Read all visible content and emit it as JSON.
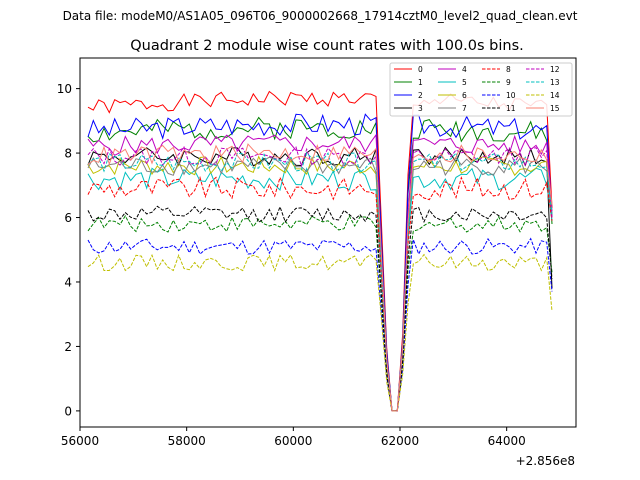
{
  "chart_data": {
    "type": "line",
    "suptitle": "Data file: modeM0/AS1A05_096T06_9000002668_17914cztM0_level2_quad_clean.evt",
    "title": "Quadrant 2 module wise count rates with 100.0s bins.",
    "xlabel": "",
    "ylabel": "",
    "offset_label": "+2.856e8",
    "xlim": [
      56000,
      65300
    ],
    "ylim": [
      -0.5,
      10.95
    ],
    "xticks": [
      56000,
      58000,
      60000,
      62000,
      64000
    ],
    "xtick_labels": [
      "56000",
      "58000",
      "60000",
      "62000",
      "64000"
    ],
    "yticks": [
      0,
      2,
      4,
      6,
      8,
      10
    ],
    "ytick_labels": [
      "0",
      "2",
      "4",
      "6",
      "8",
      "10"
    ],
    "x_start": 56150,
    "x_step": 100,
    "n_points": 88,
    "gap": {
      "drop_start": 61550,
      "zero_from": 61800,
      "zero_to": 62000,
      "recover": 62200
    },
    "grid": false,
    "legend_position": "upper-right",
    "legend_columns": 4,
    "series": [
      {
        "name": "0",
        "color": "#ff0000",
        "dash": "solid",
        "level": 9.4,
        "amp": 0.25,
        "seed": 1,
        "trend": 0.3,
        "dip_end": 6.3
      },
      {
        "name": "1",
        "color": "#008000",
        "dash": "solid",
        "level": 8.6,
        "amp": 0.35,
        "seed": 2,
        "trend": 0.2,
        "dip_end": 5.8
      },
      {
        "name": "2",
        "color": "#0000ff",
        "dash": "solid",
        "level": 8.7,
        "amp": 0.35,
        "seed": 3,
        "trend": 0.2,
        "dip_end": 6.0
      },
      {
        "name": "3",
        "color": "#000000",
        "dash": "solid",
        "level": 7.9,
        "amp": 0.3,
        "seed": 4,
        "trend": 0.0,
        "dip_end": 3.8
      },
      {
        "name": "4",
        "color": "#bf00bf",
        "dash": "solid",
        "level": 8.2,
        "amp": 0.3,
        "seed": 5,
        "trend": 0.1,
        "dip_end": 6.2
      },
      {
        "name": "5",
        "color": "#00bfbf",
        "dash": "solid",
        "level": 7.2,
        "amp": 0.35,
        "seed": 6,
        "trend": 0.0,
        "dip_end": 5.9
      },
      {
        "name": "6",
        "color": "#bfbf00",
        "dash": "solid",
        "level": 7.6,
        "amp": 0.3,
        "seed": 7,
        "trend": 0.0,
        "dip_end": 6.1
      },
      {
        "name": "7",
        "color": "#808080",
        "dash": "solid",
        "level": 7.6,
        "amp": 0.3,
        "seed": 8,
        "trend": 0.0,
        "dip_end": 6.0
      },
      {
        "name": "8",
        "color": "#ff0000",
        "dash": "dashed",
        "level": 6.9,
        "amp": 0.35,
        "seed": 9,
        "trend": 0.0,
        "dip_end": 5.9
      },
      {
        "name": "9",
        "color": "#008000",
        "dash": "dashed",
        "level": 5.8,
        "amp": 0.25,
        "seed": 10,
        "trend": 0.0,
        "dip_end": 4.3
      },
      {
        "name": "10",
        "color": "#0000ff",
        "dash": "dashed",
        "level": 5.1,
        "amp": 0.25,
        "seed": 11,
        "trend": 0.0,
        "dip_end": 3.7
      },
      {
        "name": "11",
        "color": "#000000",
        "dash": "dashed",
        "level": 6.1,
        "amp": 0.25,
        "seed": 12,
        "trend": 0.0,
        "dip_end": 4.1
      },
      {
        "name": "12",
        "color": "#bf00bf",
        "dash": "dashed",
        "level": 7.9,
        "amp": 0.3,
        "seed": 13,
        "trend": 0.0,
        "dip_end": 6.0
      },
      {
        "name": "13",
        "color": "#00bfbf",
        "dash": "dashed",
        "level": 7.7,
        "amp": 0.3,
        "seed": 14,
        "trend": 0.0,
        "dip_end": 6.1
      },
      {
        "name": "14",
        "color": "#bfbf00",
        "dash": "dashed",
        "level": 4.6,
        "amp": 0.25,
        "seed": 15,
        "trend": 0.0,
        "dip_end": 3.1
      },
      {
        "name": "15",
        "color": "#fa8072",
        "dash": "solid",
        "level": 7.9,
        "amp": 0.3,
        "seed": 16,
        "trend": 0.1,
        "dip_end": 6.4
      }
    ]
  }
}
